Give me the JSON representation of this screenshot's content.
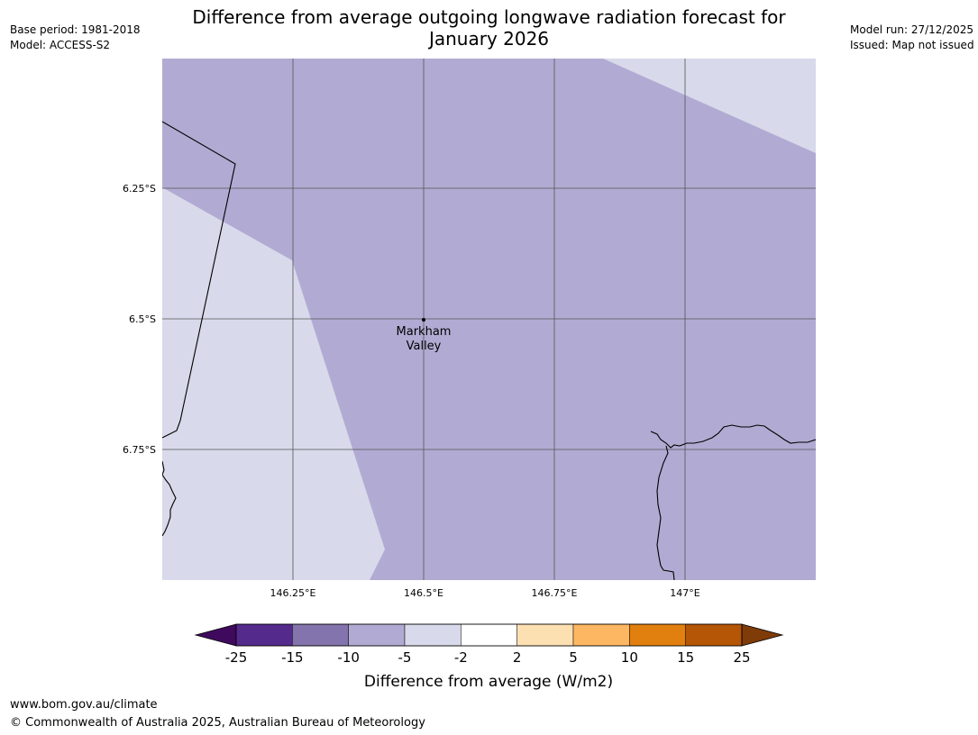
{
  "header": {
    "title_line1": "Difference from average outgoing longwave radiation forecast for",
    "title_line2": "January 2026",
    "base_period": "Base period: 1981-2018",
    "model": "Model: ACCESS-S2",
    "model_run": "Model run: 27/12/2025",
    "issued": "Issued: Map not issued"
  },
  "map": {
    "lon_ticks": [
      "146.25°E",
      "146.5°E",
      "146.75°E",
      "147°E"
    ],
    "lat_ticks": [
      "6.25°S",
      "6.5°S",
      "6.75°S"
    ],
    "place": {
      "name_line1": "Markham",
      "name_line2": "Valley"
    },
    "colors": {
      "fill_minus_10_to_minus_5": "#b1abd3",
      "fill_minus_5_to_minus_2": "#d8d9ea",
      "gridline": "#555555",
      "coastline": "#000000"
    }
  },
  "colorbar": {
    "title": "Difference from average (W/m2)",
    "labels": [
      "-25",
      "-15",
      "-10",
      "-5",
      "-2",
      "2",
      "5",
      "10",
      "15",
      "25"
    ],
    "under_color": "#3f0a5e",
    "over_color": "#7f3b08",
    "colors": [
      "#552a8d",
      "#8474ad",
      "#b1abd3",
      "#d8d9ea",
      "#ffffff",
      "#fde0b2",
      "#fdb762",
      "#e1800f",
      "#b45606"
    ]
  },
  "footer": {
    "url": "www.bom.gov.au/climate",
    "copyright": "© Commonwealth of Australia 2025, Australian Bureau of Meteorology"
  }
}
